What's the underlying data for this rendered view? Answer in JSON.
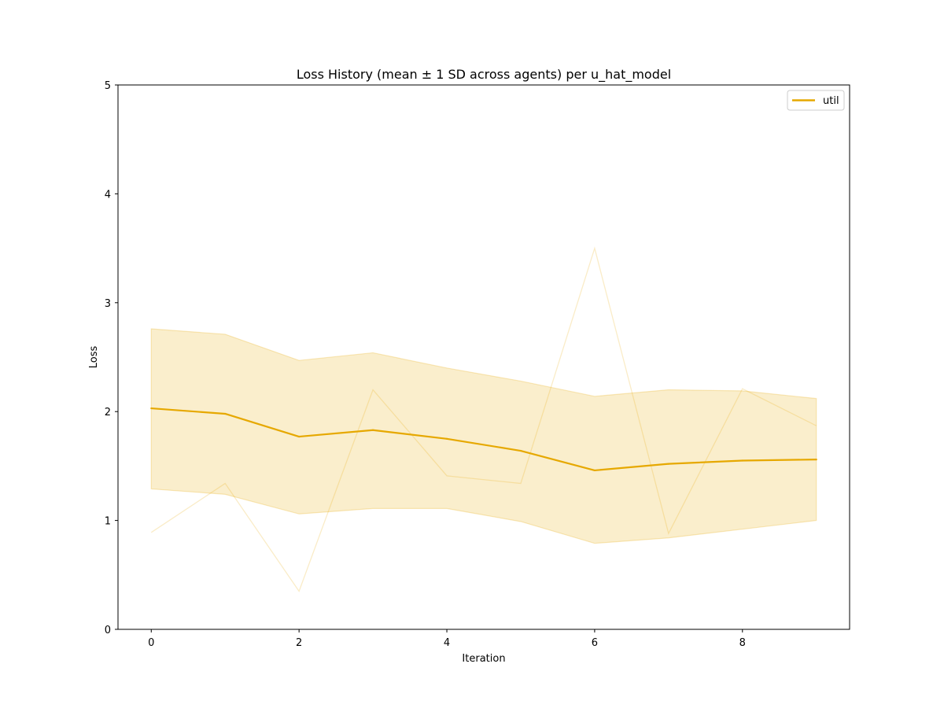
{
  "chart_data": {
    "type": "line",
    "title": "Loss History (mean ± 1 SD across agents) per u_hat_model",
    "xlabel": "Iteration",
    "ylabel": "Loss",
    "xlim": [
      -0.45,
      9.45
    ],
    "ylim": [
      0,
      5
    ],
    "x_ticks": [
      0,
      2,
      4,
      6,
      8
    ],
    "y_ticks": [
      0,
      1,
      2,
      3,
      4,
      5
    ],
    "grid": false,
    "legend_position": "top-right",
    "x": [
      0,
      1,
      2,
      3,
      4,
      5,
      6,
      7,
      8,
      9
    ],
    "series": [
      {
        "name": "util",
        "color": "#E6A800",
        "mean": [
          2.03,
          1.98,
          1.77,
          1.83,
          1.75,
          1.64,
          1.46,
          1.52,
          1.55,
          1.56
        ],
        "sd_upper": [
          2.76,
          2.71,
          2.47,
          2.54,
          2.4,
          2.28,
          2.14,
          2.2,
          2.19,
          2.12
        ],
        "sd_lower": [
          1.29,
          1.24,
          1.06,
          1.11,
          1.11,
          0.99,
          0.79,
          0.84,
          0.92,
          1.0
        ],
        "agent_trace": [
          0.89,
          1.34,
          0.35,
          2.2,
          1.41,
          1.34,
          3.5,
          0.88,
          2.21,
          1.87
        ]
      }
    ]
  }
}
